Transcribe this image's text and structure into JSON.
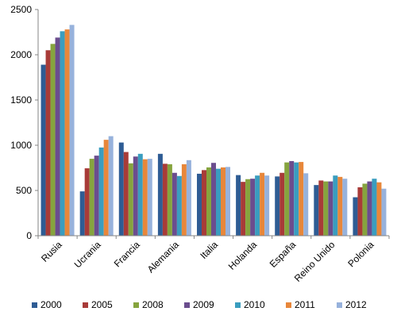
{
  "chart_data": {
    "type": "bar",
    "title": "",
    "xlabel": "",
    "ylabel": "",
    "ylim": [
      0,
      2500
    ],
    "yticks": [
      "0",
      "500",
      "1000",
      "1500",
      "2000",
      "2500"
    ],
    "grid": false,
    "legend_position": "bottom",
    "categories": [
      "Rusia",
      "Ucrania",
      "Francia",
      "Alemania",
      "Italia",
      "Holanda",
      "España",
      "Reino Unido",
      "Polonia"
    ],
    "series": [
      {
        "name": "2000",
        "color": "#2E5C94",
        "values": [
          1890,
          490,
          1030,
          905,
          685,
          670,
          655,
          560,
          425
        ]
      },
      {
        "name": "2005",
        "color": "#A83B38",
        "values": [
          2050,
          745,
          925,
          795,
          725,
          595,
          695,
          610,
          535
        ]
      },
      {
        "name": "2008",
        "color": "#86A43E",
        "values": [
          2120,
          850,
          800,
          790,
          755,
          625,
          810,
          600,
          575
        ]
      },
      {
        "name": "2009",
        "color": "#6B4D8E",
        "values": [
          2190,
          885,
          875,
          695,
          805,
          630,
          825,
          600,
          600
        ]
      },
      {
        "name": "2010",
        "color": "#3A9DBF",
        "values": [
          2260,
          975,
          905,
          660,
          740,
          665,
          810,
          665,
          630
        ]
      },
      {
        "name": "2011",
        "color": "#E8873A",
        "values": [
          2280,
          1060,
          845,
          790,
          755,
          695,
          815,
          650,
          590
        ]
      },
      {
        "name": "2012",
        "color": "#97B2DC",
        "values": [
          2330,
          1100,
          850,
          835,
          760,
          665,
          690,
          630,
          520
        ]
      }
    ]
  }
}
